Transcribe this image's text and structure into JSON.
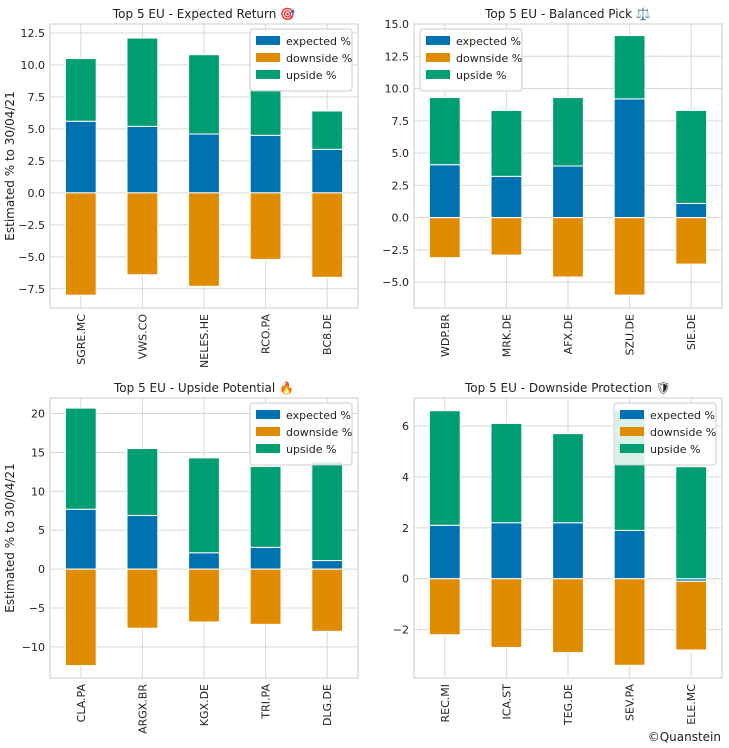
{
  "figure": {
    "footer": "©Quanstein",
    "series_colors": {
      "expected %": "#0072b2",
      "downside %": "#e08c00",
      "upside %": "#009e73"
    }
  },
  "chart_data": [
    {
      "type": "bar",
      "stacked": true,
      "title": "Top 5 EU - Expected Return 🎯",
      "ylabel": "Estimated % to 30/04/21",
      "categories": [
        "SGRE.MC",
        "VWS.CO",
        "NELES.HE",
        "RCO.PA",
        "BC8.DE"
      ],
      "ylim": [
        -9.0,
        13.2
      ],
      "yticks": [
        -7.5,
        -5.0,
        -2.5,
        0.0,
        2.5,
        5.0,
        7.5,
        10.0,
        12.5
      ],
      "ytick_labels": [
        "−7.5",
        "−5.0",
        "−2.5",
        "0.0",
        "2.5",
        "5.0",
        "7.5",
        "10.0",
        "12.5"
      ],
      "legend": "top-right",
      "grid": true,
      "series": [
        {
          "name": "expected %",
          "values": [
            5.6,
            5.2,
            4.6,
            4.5,
            3.4
          ]
        },
        {
          "name": "downside %",
          "values": [
            -8.0,
            -6.4,
            -7.3,
            -5.2,
            -6.6
          ]
        },
        {
          "name": "upside %",
          "values": [
            4.9,
            6.9,
            6.2,
            3.6,
            3.0
          ]
        }
      ]
    },
    {
      "type": "bar",
      "stacked": true,
      "title": "Top 5 EU - Balanced Pick ⚖️",
      "ylabel": "",
      "categories": [
        "WDP.BR",
        "MRK.DE",
        "AFX.DE",
        "SZU.DE",
        "SIE.DE"
      ],
      "ylim": [
        -7.0,
        15.0
      ],
      "yticks": [
        -5.0,
        -2.5,
        0.0,
        2.5,
        5.0,
        7.5,
        10.0,
        12.5,
        15.0
      ],
      "ytick_labels": [
        "−5.0",
        "−2.5",
        "0.0",
        "2.5",
        "5.0",
        "7.5",
        "10.0",
        "12.5",
        "15.0"
      ],
      "legend": "top-left",
      "grid": true,
      "series": [
        {
          "name": "expected %",
          "values": [
            4.1,
            3.2,
            4.0,
            9.2,
            1.1
          ]
        },
        {
          "name": "downside %",
          "values": [
            -3.1,
            -2.9,
            -4.6,
            -6.0,
            -3.6
          ]
        },
        {
          "name": "upside %",
          "values": [
            5.2,
            5.1,
            5.3,
            4.9,
            7.2
          ]
        }
      ]
    },
    {
      "type": "bar",
      "stacked": true,
      "title": "Top 5 EU - Upside Potential 🔥",
      "ylabel": "Estimated % to 30/04/21",
      "categories": [
        "CLA.PA",
        "ARGX.BR",
        "KGX.DE",
        "TRI.PA",
        "DLG.DE"
      ],
      "ylim": [
        -14.0,
        22.0
      ],
      "yticks": [
        -10,
        -5,
        0,
        5,
        10,
        15,
        20
      ],
      "ytick_labels": [
        "−10",
        "−5",
        "0",
        "5",
        "10",
        "15",
        "20"
      ],
      "legend": "top-right",
      "grid": true,
      "series": [
        {
          "name": "expected %",
          "values": [
            7.7,
            6.9,
            2.1,
            2.8,
            1.1
          ]
        },
        {
          "name": "downside %",
          "values": [
            -12.4,
            -7.6,
            -6.8,
            -7.1,
            -8.0
          ]
        },
        {
          "name": "upside %",
          "values": [
            13.0,
            8.6,
            12.2,
            10.4,
            12.7
          ]
        }
      ]
    },
    {
      "type": "bar",
      "stacked": true,
      "title": "Top 5 EU - Downside Protection 🛡",
      "ylabel": "",
      "categories": [
        "REC.MI",
        "ICA.ST",
        "TEG.DE",
        "SEV.PA",
        "ELE.MC"
      ],
      "ylim": [
        -3.9,
        7.1
      ],
      "yticks": [
        -2,
        0,
        2,
        4,
        6
      ],
      "ytick_labels": [
        "−2",
        "0",
        "2",
        "4",
        "6"
      ],
      "legend": "top-right",
      "grid": true,
      "series": [
        {
          "name": "expected %",
          "values": [
            2.1,
            2.2,
            2.2,
            1.9,
            -0.1
          ]
        },
        {
          "name": "downside %",
          "values": [
            -2.2,
            -2.7,
            -2.9,
            -3.4,
            -2.7
          ]
        },
        {
          "name": "upside %",
          "values": [
            4.5,
            3.9,
            3.5,
            4.7,
            4.4
          ]
        }
      ]
    }
  ]
}
